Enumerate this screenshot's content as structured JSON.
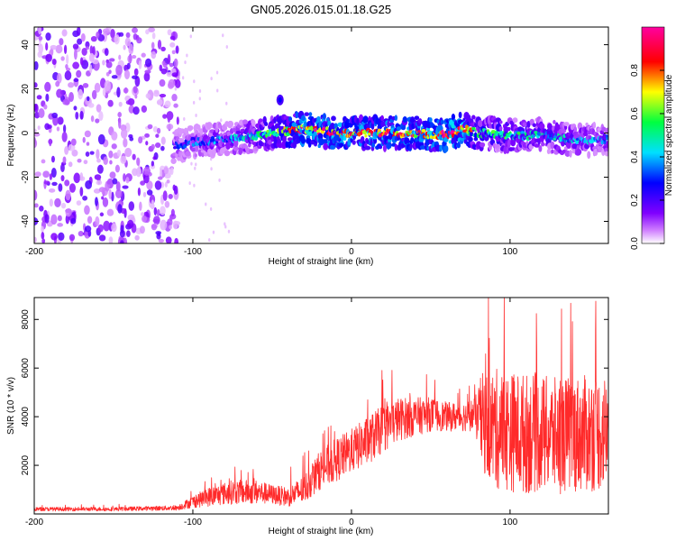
{
  "title": "GN05.2026.015.01.18.G25",
  "chart_data": [
    {
      "type": "heatmap",
      "xlabel": "Height of straight line (km)",
      "ylabel": "Frequency (Hz)",
      "xlim": [
        -200,
        162
      ],
      "ylim": [
        -50,
        48
      ],
      "xticks": [
        -200,
        -100,
        0,
        100
      ],
      "yticks": [
        -40,
        -20,
        0,
        20,
        40
      ],
      "colorbar": {
        "label": "Normalized spectral amplitude",
        "range": [
          0,
          1
        ],
        "ticks": [
          "0.0",
          "0.2",
          "0.4",
          "0.6",
          "0.8"
        ],
        "tick_values": [
          0,
          0.2,
          0.4,
          0.6,
          0.8
        ],
        "colormap": "gmt-rainbow (white-violet-blue-cyan-green-yellow-red-magenta)"
      },
      "noise_region_x": [
        -200,
        -112
      ],
      "signal_ridge": {
        "x": [
          -112,
          -100,
          -80,
          -60,
          -40,
          -30,
          -20,
          0,
          20,
          40,
          60,
          70,
          80,
          100,
          120,
          140,
          162
        ],
        "freq": [
          -6,
          -4,
          -3,
          -1,
          1,
          2,
          1,
          0,
          0,
          0,
          -1,
          2,
          0,
          -1,
          -1,
          -3,
          -3
        ],
        "peak_amplitude": [
          0.3,
          0.35,
          0.4,
          0.5,
          0.8,
          0.95,
          0.95,
          0.9,
          0.9,
          0.9,
          1.0,
          0.95,
          0.6,
          0.55,
          0.5,
          0.45,
          0.4
        ]
      },
      "isolated_blob": {
        "x": -45,
        "freq": 15
      }
    },
    {
      "type": "line",
      "xlabel": "Height of straight line (km)",
      "ylabel": "SNR (10 * v/v)",
      "xlim": [
        -200,
        162
      ],
      "ylim": [
        0,
        8900
      ],
      "xticks": [
        -200,
        -100,
        0,
        100
      ],
      "yticks": [
        2000,
        4000,
        6000,
        8000
      ],
      "color": "#ff2a2a",
      "envelope": {
        "x": [
          -200,
          -150,
          -110,
          -100,
          -90,
          -75,
          -60,
          -50,
          -40,
          -30,
          -20,
          -10,
          0,
          10,
          20,
          30,
          40,
          50,
          60,
          70,
          78,
          82,
          90,
          100,
          110,
          120,
          130,
          140,
          150,
          162
        ],
        "mean": [
          200,
          200,
          250,
          500,
          700,
          900,
          900,
          800,
          700,
          1000,
          1800,
          2200,
          2600,
          3000,
          3500,
          3900,
          4000,
          4100,
          4000,
          4000,
          4100,
          3800,
          3500,
          3400,
          3300,
          3300,
          3200,
          3300,
          3300,
          3400
        ],
        "spread": [
          80,
          80,
          100,
          250,
          400,
          500,
          500,
          400,
          400,
          600,
          800,
          900,
          900,
          1000,
          1000,
          900,
          800,
          700,
          600,
          600,
          700,
          2000,
          2500,
          2500,
          2500,
          2400,
          2400,
          2400,
          2400,
          2400
        ]
      }
    }
  ]
}
